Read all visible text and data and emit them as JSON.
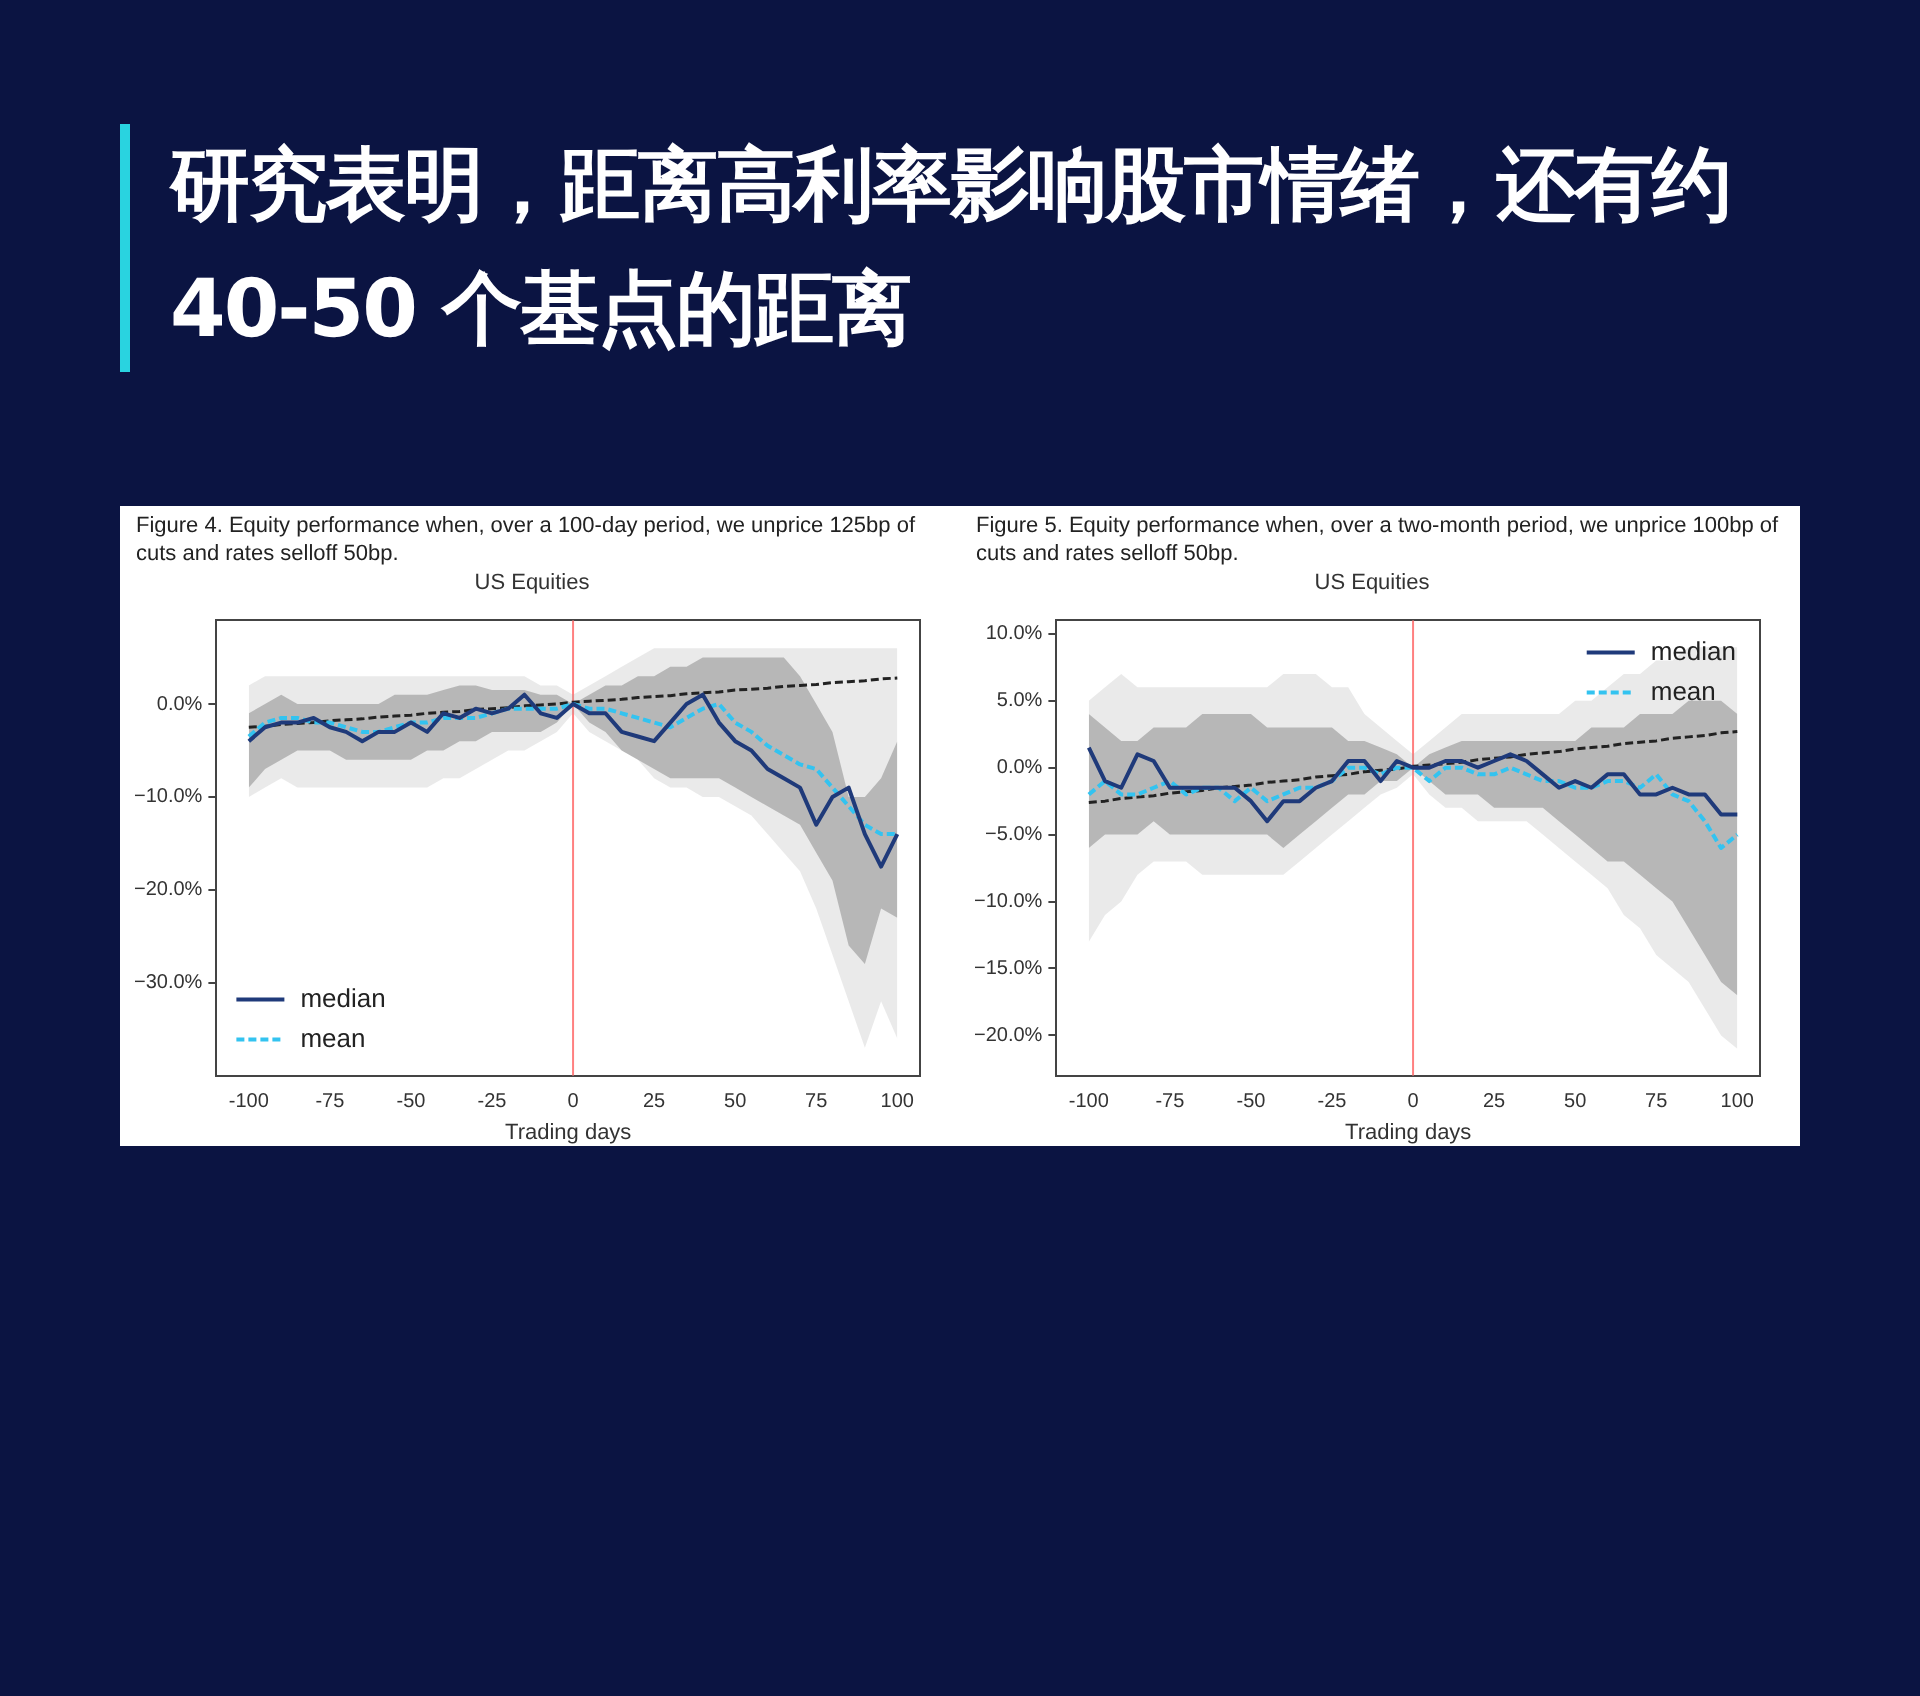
{
  "chart_data": [
    {
      "type": "other",
      "title": "研究表明，距离高利率影响股市情绪，还有约 40-50 个基点的距离"
    },
    {
      "type": "line",
      "title": "Figure 4. Equity performance when, over a 100-day period, we unprice 125bp of cuts and rates selloff 50bp.",
      "subtitle": "US Equities",
      "xlabel": "Trading days",
      "x": [
        -100,
        -95,
        -90,
        -85,
        -80,
        -75,
        -70,
        -65,
        -60,
        -55,
        -50,
        -45,
        -40,
        -35,
        -30,
        -25,
        -20,
        -15,
        -10,
        -5,
        0,
        5,
        10,
        15,
        20,
        25,
        30,
        35,
        40,
        45,
        50,
        55,
        60,
        65,
        70,
        75,
        80,
        85,
        90,
        95,
        100
      ],
      "series": [
        {
          "name": "median",
          "color": "#1f3a7a",
          "line_style": "solid",
          "values": [
            -4,
            -2.5,
            -2,
            -2,
            -1.5,
            -2.5,
            -3,
            -4,
            -3,
            -3,
            -2,
            -3,
            -1,
            -1.5,
            -0.5,
            -1,
            -0.5,
            1,
            -1,
            -1.5,
            0,
            -1,
            -1,
            -3,
            -3.5,
            -4,
            -2,
            0,
            1,
            -2,
            -4,
            -5,
            -7,
            -8,
            -9,
            -13,
            -10,
            -9,
            -14,
            -17.5,
            -14
          ],
          "lower": [
            -9,
            -7,
            -6,
            -5,
            -5,
            -5,
            -6,
            -6,
            -6,
            -6,
            -6,
            -5,
            -5,
            -4,
            -4,
            -3,
            -3,
            -3,
            -3,
            -2,
            0,
            -2,
            -3,
            -5,
            -6,
            -7,
            -8,
            -8,
            -8,
            -8,
            -9,
            -10,
            -11,
            -12,
            -13,
            -16,
            -19,
            -26,
            -28,
            -22,
            -23
          ],
          "upper": [
            -1,
            0,
            1,
            0,
            0,
            0,
            0,
            0,
            0,
            1,
            1,
            1,
            1.5,
            2,
            2,
            1.5,
            1.5,
            1.5,
            1,
            1,
            0,
            1,
            2,
            2,
            3,
            3,
            4,
            4,
            5,
            5,
            5,
            5,
            5,
            5,
            3,
            0,
            -3,
            -10,
            -10,
            -8,
            -4
          ]
        },
        {
          "name": "mean",
          "color": "#33c3f0",
          "line_style": "dashed",
          "values": [
            -3.5,
            -2,
            -1.5,
            -1.5,
            -2,
            -2,
            -2.5,
            -3,
            -3,
            -2.5,
            -2,
            -2,
            -1.5,
            -1.5,
            -1.5,
            -1,
            -0.5,
            -0.5,
            -0.5,
            -0.5,
            0,
            -0.5,
            -0.5,
            -1,
            -1.5,
            -2,
            -2.5,
            -1.5,
            -0.5,
            0,
            -2,
            -3,
            -4.5,
            -5.5,
            -6.5,
            -7,
            -9,
            -11,
            -13,
            -14,
            -14
          ],
          "lower": [
            -10,
            -9,
            -8,
            -9,
            -9,
            -9,
            -9,
            -9,
            -9,
            -9,
            -9,
            -9,
            -8,
            -8,
            -7,
            -6,
            -5,
            -5,
            -4,
            -3,
            -1,
            -3,
            -4,
            -5,
            -6,
            -8,
            -9,
            -9,
            -10,
            -10,
            -11,
            -12,
            -14,
            -16,
            -18,
            -22,
            -27,
            -32,
            -37,
            -32,
            -36
          ],
          "upper": [
            2,
            3,
            3,
            3,
            3,
            3,
            3,
            3,
            3,
            3,
            3,
            3,
            3,
            3,
            3,
            3,
            3,
            3,
            2,
            2,
            1,
            2,
            3,
            4,
            5,
            6,
            6,
            6,
            6,
            6,
            6,
            6,
            6,
            6,
            6,
            6,
            6,
            6,
            6,
            6,
            6
          ]
        },
        {
          "type": "line",
          "color": "#222222",
          "line_style": "dashed",
          "values": [
            -2.5,
            -2.4,
            -2.2,
            -2.1,
            -2.0,
            -1.8,
            -1.7,
            -1.6,
            -1.4,
            -1.3,
            -1.2,
            -1.0,
            -0.9,
            -0.8,
            -0.6,
            -0.5,
            -0.4,
            -0.2,
            -0.1,
            0,
            0.2,
            0.3,
            0.4,
            0.5,
            0.7,
            0.8,
            0.9,
            1.1,
            1.2,
            1.3,
            1.5,
            1.6,
            1.7,
            1.9,
            2.0,
            2.1,
            2.3,
            2.4,
            2.5,
            2.7,
            2.8
          ]
        }
      ],
      "xlim": [
        -110,
        107
      ],
      "xticks": [
        -100,
        -75,
        -50,
        -25,
        0,
        25,
        50,
        75,
        100
      ],
      "ylim": [
        -40,
        9
      ],
      "yticks": [
        {
          "value": 0,
          "label": "0.0%"
        },
        {
          "value": -10,
          "label": "−10.0%"
        },
        {
          "value": -20,
          "label": "−20.0%"
        },
        {
          "value": -30,
          "label": "−30.0%"
        }
      ],
      "ref_lines": [
        {
          "axis": "x",
          "value": 0,
          "color": "#ff8080"
        }
      ],
      "grid": false,
      "legend": "bottom left",
      "marker": "none"
    },
    {
      "type": "line",
      "title": "Figure 5. Equity performance when, over a two-month period, we unprice 100bp of cuts and rates selloff 50bp.",
      "subtitle": "US Equities",
      "xlabel": "Trading days",
      "x": [
        -100,
        -95,
        -90,
        -85,
        -80,
        -75,
        -70,
        -65,
        -60,
        -55,
        -50,
        -45,
        -40,
        -35,
        -30,
        -25,
        -20,
        -15,
        -10,
        -5,
        0,
        5,
        10,
        15,
        20,
        25,
        30,
        35,
        40,
        45,
        50,
        55,
        60,
        65,
        70,
        75,
        80,
        85,
        90,
        95,
        100
      ],
      "series": [
        {
          "name": "median",
          "color": "#1f3a7a",
          "line_style": "solid",
          "values": [
            1.5,
            -1,
            -1.5,
            1,
            0.5,
            -1.5,
            -1.5,
            -1.5,
            -1.5,
            -1.5,
            -2.5,
            -4,
            -2.5,
            -2.5,
            -1.5,
            -1,
            0.5,
            0.5,
            -1,
            0.5,
            0,
            0,
            0.5,
            0.5,
            0,
            0.5,
            1,
            0.5,
            -0.5,
            -1.5,
            -1,
            -1.5,
            -0.5,
            -0.5,
            -2,
            -2,
            -1.5,
            -2,
            -2,
            -3.5,
            -3.5
          ],
          "lower": [
            -6,
            -5,
            -5,
            -5,
            -4,
            -5,
            -5,
            -5,
            -5,
            -5,
            -5,
            -5,
            -6,
            -5,
            -4,
            -3,
            -2,
            -2,
            -1,
            -1,
            0,
            -1,
            -2,
            -2,
            -2,
            -3,
            -3,
            -3,
            -3,
            -4,
            -5,
            -6,
            -7,
            -7,
            -8,
            -9,
            -10,
            -12,
            -14,
            -16,
            -17
          ],
          "upper": [
            4,
            3,
            2,
            2,
            3,
            3,
            3,
            4,
            4,
            4,
            4,
            3,
            3,
            3,
            3,
            3,
            2,
            2,
            1.5,
            1,
            0,
            1,
            1.5,
            2,
            2,
            2,
            2,
            2,
            2,
            2,
            2,
            3,
            3,
            3,
            4,
            4,
            4,
            5,
            5,
            5,
            4
          ]
        },
        {
          "name": "mean",
          "color": "#33c3f0",
          "line_style": "dashed",
          "values": [
            -2,
            -1,
            -2,
            -2,
            -1.5,
            -1,
            -2,
            -1.5,
            -1.5,
            -2.5,
            -1.5,
            -2.5,
            -2,
            -1.5,
            -1.5,
            -1,
            0,
            0,
            -0.5,
            0,
            0,
            -1,
            0,
            0,
            -0.5,
            -0.5,
            0,
            -0.5,
            -1,
            -1,
            -1.5,
            -1.5,
            -1,
            -1,
            -1.5,
            -0.5,
            -2,
            -2.5,
            -4,
            -6,
            -5
          ],
          "lower": [
            -13,
            -11,
            -10,
            -8,
            -7,
            -7,
            -7,
            -8,
            -8,
            -8,
            -8,
            -8,
            -8,
            -7,
            -6,
            -5,
            -4,
            -3,
            -2,
            -1.5,
            -0.5,
            -2,
            -3,
            -3,
            -4,
            -4,
            -4,
            -4,
            -5,
            -6,
            -7,
            -8,
            -9,
            -11,
            -12,
            -14,
            -15,
            -16,
            -18,
            -20,
            -21
          ],
          "upper": [
            5,
            6,
            7,
            6,
            6,
            6,
            6,
            6,
            6,
            6,
            6,
            6,
            7,
            7,
            7,
            6,
            6,
            4,
            3,
            2,
            1,
            2,
            3,
            4,
            4,
            4,
            4,
            4,
            4,
            4,
            5,
            5,
            6,
            7,
            7,
            8,
            8,
            9,
            9,
            9,
            9
          ]
        },
        {
          "type": "line",
          "color": "#222222",
          "line_style": "dashed",
          "values": [
            -2.6,
            -2.5,
            -2.3,
            -2.2,
            -2.1,
            -1.9,
            -1.8,
            -1.7,
            -1.5,
            -1.4,
            -1.3,
            -1.1,
            -1.0,
            -0.9,
            -0.7,
            -0.6,
            -0.5,
            -0.3,
            -0.2,
            -0.1,
            0.1,
            0.2,
            0.3,
            0.4,
            0.6,
            0.7,
            0.8,
            1.0,
            1.1,
            1.2,
            1.4,
            1.5,
            1.6,
            1.8,
            1.9,
            2.0,
            2.2,
            2.3,
            2.4,
            2.6,
            2.7
          ]
        }
      ],
      "xlim": [
        -110,
        107
      ],
      "xticks": [
        -100,
        -75,
        -50,
        -25,
        0,
        25,
        50,
        75,
        100
      ],
      "ylim": [
        -23,
        11
      ],
      "yticks": [
        {
          "value": 10,
          "label": "10.0%"
        },
        {
          "value": 5,
          "label": "5.0%"
        },
        {
          "value": 0,
          "label": "0.0%"
        },
        {
          "value": -5,
          "label": "−5.0%"
        },
        {
          "value": -10,
          "label": "−10.0%"
        },
        {
          "value": -15,
          "label": "−15.0%"
        },
        {
          "value": -20,
          "label": "−20.0%"
        }
      ],
      "ref_lines": [
        {
          "axis": "x",
          "value": 0,
          "color": "#ff8080"
        }
      ],
      "grid": false,
      "legend": "top right",
      "marker": "none"
    }
  ]
}
